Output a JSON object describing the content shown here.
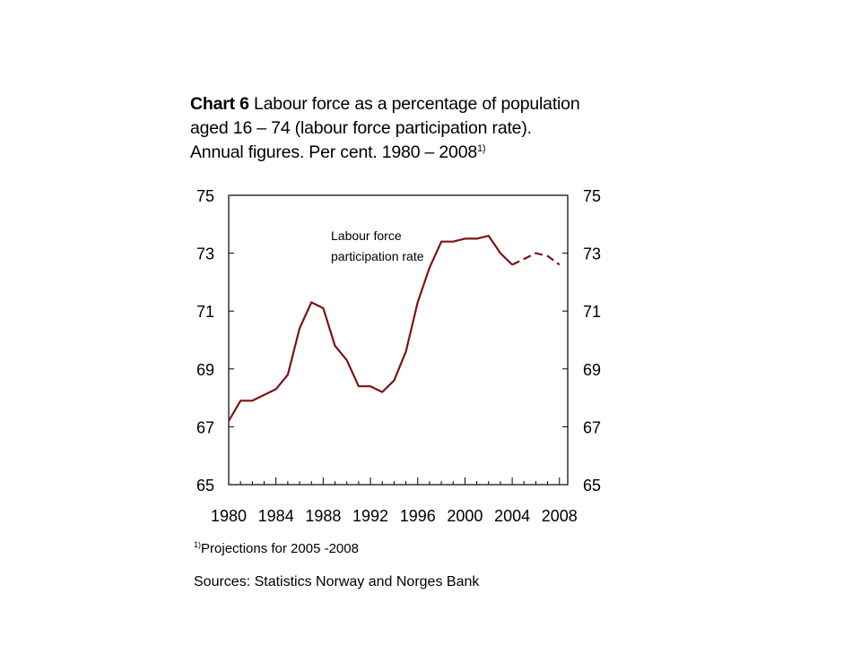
{
  "title": {
    "bold": "Chart 6",
    "line1": "Labour force as a percentage of population",
    "line2": "aged 16 – 74 (labour force participation rate).",
    "line3": "Annual figures. Per cent. 1980 – 2008",
    "sup": "1)"
  },
  "footnote": {
    "sup": "1)",
    "text": "Projections for 2005 -2008"
  },
  "sources": "Sources: Statistics Norway and Norges Bank",
  "colors": {
    "series": "#7b1416"
  },
  "chart_data": {
    "type": "line",
    "xlim": [
      1980,
      2008.7
    ],
    "ylim": [
      65,
      75
    ],
    "yticks": [
      65,
      67,
      69,
      71,
      73,
      75
    ],
    "xtick_labels": [
      "1980",
      "1984",
      "1988",
      "1992",
      "1996",
      "2000",
      "2004",
      "2008"
    ],
    "xticks": [
      1980,
      1984,
      1988,
      1992,
      1996,
      2000,
      2004,
      2008
    ],
    "secondary_y_axis": true,
    "grid": false,
    "series": [
      {
        "name": "Labour force participation rate",
        "x": [
          1980,
          1981,
          1982,
          1983,
          1984,
          1985,
          1986,
          1987,
          1988,
          1989,
          1990,
          1991,
          1992,
          1993,
          1994,
          1995,
          1996,
          1997,
          1998,
          1999,
          2000,
          2001,
          2002,
          2003,
          2004,
          2005,
          2006,
          2007,
          2008
        ],
        "values": [
          67.2,
          67.9,
          67.9,
          68.1,
          68.3,
          68.8,
          70.4,
          71.3,
          71.1,
          69.8,
          69.3,
          68.4,
          68.4,
          68.2,
          68.6,
          69.6,
          71.3,
          72.5,
          73.4,
          73.4,
          73.5,
          73.5,
          73.6,
          73.0,
          72.6,
          72.8,
          73.0,
          72.9,
          72.6
        ],
        "projection_from": 2004
      }
    ],
    "annotations": [
      "Labour force",
      "participation rate"
    ]
  }
}
